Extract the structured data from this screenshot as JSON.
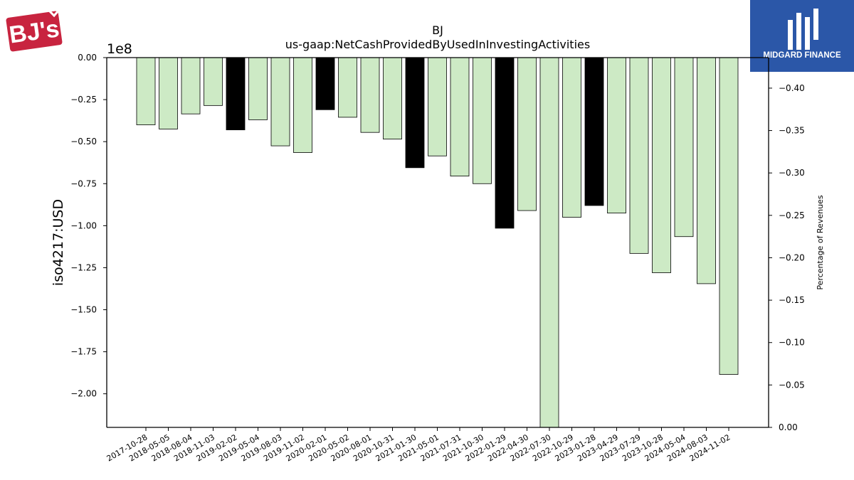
{
  "logos": {
    "left": {
      "text": "BJ's",
      "color": "#c8243f"
    },
    "right": {
      "text": "MIDGARD FINANCE",
      "color": "#2b57a8"
    }
  },
  "chart_data": {
    "type": "bar",
    "title": "BJ",
    "subtitle": "us-gaap:NetCashProvidedByUsedInInvestingActivities",
    "ylabel": "iso4217:USD",
    "y2label": "Percentage of Revenues",
    "y_offset_label": "1e8",
    "ylim": [
      -2.2,
      0
    ],
    "y_ticks": [
      0.0,
      -0.25,
      -0.5,
      -0.75,
      -1.0,
      -1.25,
      -1.5,
      -1.75,
      -2.0
    ],
    "y_tick_labels": [
      "0.00",
      "−0.25",
      "−0.50",
      "−0.75",
      "−1.00",
      "−1.25",
      "−1.50",
      "−1.75",
      "−2.00"
    ],
    "y2lim": [
      0.0,
      -0.436
    ],
    "y2_ticks": [
      0.0,
      -0.05,
      -0.1,
      -0.15,
      -0.2,
      -0.25,
      -0.3,
      -0.35,
      -0.4
    ],
    "y2_tick_labels": [
      "0.00",
      "−0.05",
      "−0.10",
      "−0.15",
      "−0.20",
      "−0.25",
      "−0.30",
      "−0.35",
      "−0.40"
    ],
    "categories": [
      "2017-10-28",
      "2018-05-05",
      "2018-08-04",
      "2018-11-03",
      "2019-02-02",
      "2019-05-04",
      "2019-08-03",
      "2019-11-02",
      "2020-02-01",
      "2020-05-02",
      "2020-08-01",
      "2020-10-31",
      "2021-01-30",
      "2021-05-01",
      "2021-07-31",
      "2021-10-30",
      "2022-01-29",
      "2022-04-30",
      "2022-07-30",
      "2022-10-29",
      "2023-01-28",
      "2023-04-29",
      "2023-07-29",
      "2023-10-28",
      "2024-05-04",
      "2024-08-03",
      "2024-11-02"
    ],
    "series": [
      {
        "values": [
          -0.4,
          -0.425,
          -0.335,
          -0.285,
          -0.43,
          -0.37,
          -0.525,
          -0.565,
          -0.31,
          -0.355,
          -0.445,
          -0.485,
          -0.655,
          -0.585,
          -0.705,
          -0.75,
          -1.015,
          -0.91,
          -2.2,
          -0.95,
          -0.88,
          -0.925,
          -1.165,
          -1.28,
          -1.065,
          -1.345,
          -1.885
        ],
        "colors": [
          "#cdeac5",
          "#cdeac5",
          "#cdeac5",
          "#cdeac5",
          "#000000",
          "#cdeac5",
          "#cdeac5",
          "#cdeac5",
          "#000000",
          "#cdeac5",
          "#cdeac5",
          "#cdeac5",
          "#000000",
          "#cdeac5",
          "#cdeac5",
          "#cdeac5",
          "#000000",
          "#cdeac5",
          "#cdeac5",
          "#cdeac5",
          "#000000",
          "#cdeac5",
          "#cdeac5",
          "#cdeac5",
          "#cdeac5",
          "#cdeac5",
          "#cdeac5"
        ]
      }
    ],
    "grid": false,
    "colors": {
      "bar": "#cdeac5",
      "highlight": "#000000",
      "edge": "#000000"
    }
  }
}
